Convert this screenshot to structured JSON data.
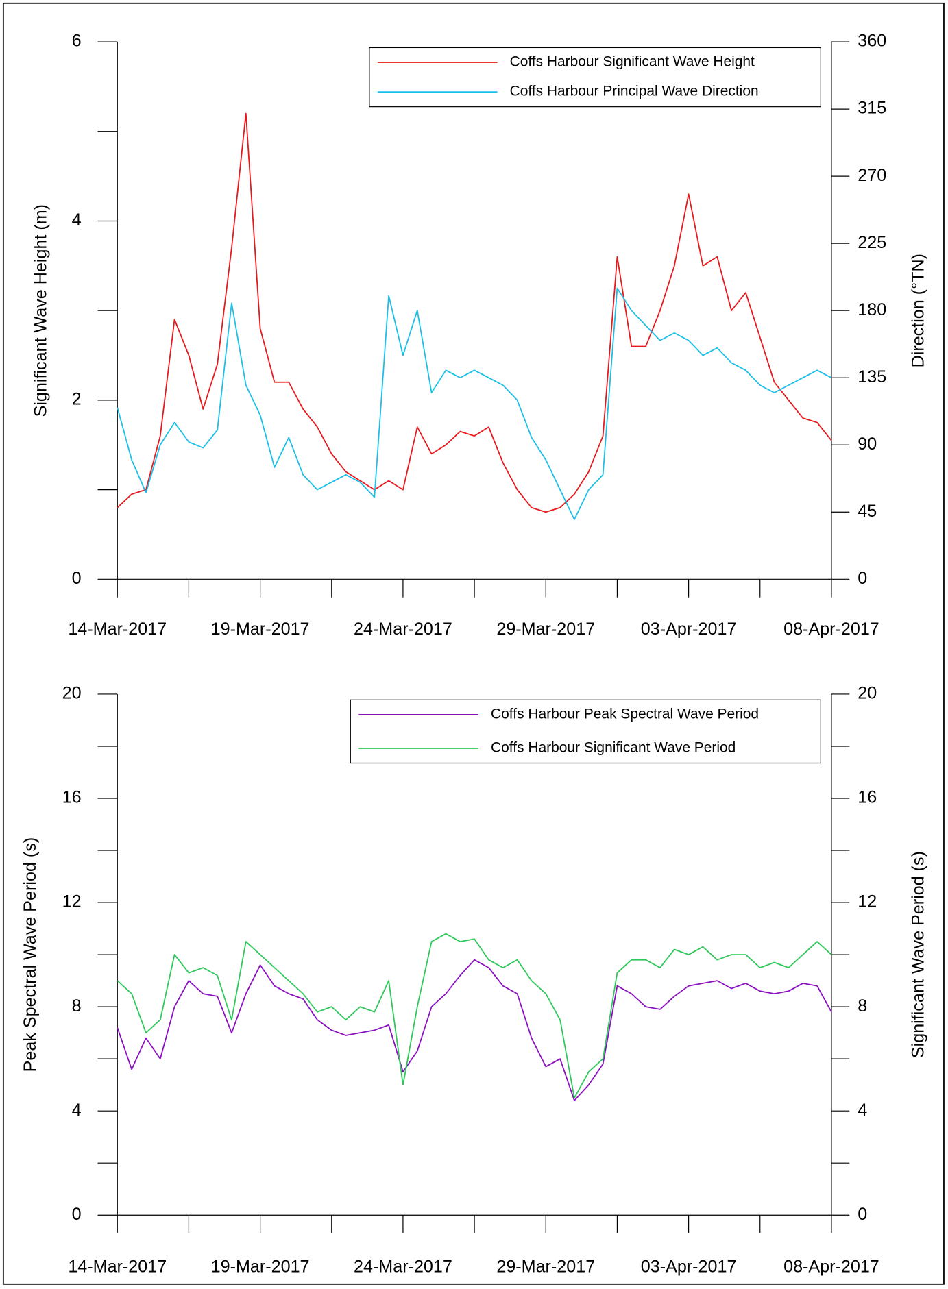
{
  "chart_data": [
    {
      "type": "line",
      "ylabel": "Significant Wave Height (m)",
      "y2label": "Direction (°TN)",
      "x": [
        42808,
        42808.5,
        42809,
        42809.5,
        42810,
        42810.5,
        42811,
        42811.5,
        42812,
        42812.5,
        42813,
        42813.5,
        42814,
        42814.5,
        42815,
        42815.5,
        42816,
        42816.5,
        42817,
        42817.5,
        42818,
        42818.5,
        42819,
        42819.5,
        42820,
        42820.5,
        42821,
        42821.5,
        42822,
        42822.5,
        42823,
        42823.5,
        42824,
        42824.5,
        42825,
        42825.5,
        42826,
        42826.5,
        42827,
        42827.5,
        42828,
        42828.5,
        42829,
        42829.5,
        42830,
        42830.5,
        42831,
        42831.5,
        42832,
        42832.5,
        42833
      ],
      "xlim": [
        42808,
        42833
      ],
      "xticks": [
        {
          "value": 42808,
          "label": "14-Mar-2017"
        },
        {
          "value": 42813,
          "label": "19-Mar-2017"
        },
        {
          "value": 42818,
          "label": "24-Mar-2017"
        },
        {
          "value": 42823,
          "label": "29-Mar-2017"
        },
        {
          "value": 42828,
          "label": "03-Apr-2017"
        },
        {
          "value": 42833,
          "label": "08-Apr-2017"
        }
      ],
      "xminorticks": [
        42810.5,
        42815.5,
        42820.5,
        42825.5,
        42830.5
      ],
      "ylim": [
        0,
        6
      ],
      "yticks": [
        0,
        2,
        4,
        6
      ],
      "yminorticks": [
        1,
        3,
        5
      ],
      "y2lim": [
        0,
        360
      ],
      "y2ticks": [
        0,
        45,
        90,
        135,
        180,
        225,
        270,
        315,
        360
      ],
      "y2minorticks": [],
      "legend": "upper right",
      "series": [
        {
          "name": "Coffs Harbour Significant Wave Height",
          "color": "#e8191c",
          "values": [
            0.8,
            0.95,
            1.0,
            1.6,
            2.9,
            2.5,
            1.9,
            2.4,
            3.7,
            5.2,
            2.8,
            2.2,
            2.2,
            1.9,
            1.7,
            1.4,
            1.2,
            1.1,
            1.0,
            1.1,
            1.0,
            1.7,
            1.4,
            1.5,
            1.65,
            1.6,
            1.7,
            1.3,
            1.0,
            0.8,
            0.75,
            0.8,
            0.95,
            1.2,
            1.6,
            3.6,
            2.6,
            2.6,
            3.0,
            3.5,
            4.3,
            3.5,
            3.6,
            3.0,
            3.2,
            2.7,
            2.2,
            2.0,
            1.8,
            1.75,
            1.55
          ]
        },
        {
          "name": "Coffs Harbour Principal Wave Direction",
          "color": "#1cbfe8",
          "axis": "y2",
          "values": [
            115,
            80,
            58,
            90,
            105,
            92,
            88,
            100,
            185,
            130,
            110,
            75,
            95,
            70,
            60,
            65,
            70,
            65,
            55,
            190,
            150,
            180,
            125,
            140,
            135,
            140,
            135,
            130,
            120,
            95,
            80,
            60,
            40,
            60,
            70,
            195,
            180,
            170,
            160,
            165,
            160,
            150,
            155,
            145,
            140,
            130,
            125,
            130,
            135,
            140,
            135
          ]
        }
      ]
    },
    {
      "type": "line",
      "ylabel": "Peak Spectral Wave Period (s)",
      "y2label": "Significant Wave Period (s)",
      "x": [
        42808,
        42808.5,
        42809,
        42809.5,
        42810,
        42810.5,
        42811,
        42811.5,
        42812,
        42812.5,
        42813,
        42813.5,
        42814,
        42814.5,
        42815,
        42815.5,
        42816,
        42816.5,
        42817,
        42817.5,
        42818,
        42818.5,
        42819,
        42819.5,
        42820,
        42820.5,
        42821,
        42821.5,
        42822,
        42822.5,
        42823,
        42823.5,
        42824,
        42824.5,
        42825,
        42825.5,
        42826,
        42826.5,
        42827,
        42827.5,
        42828,
        42828.5,
        42829,
        42829.5,
        42830,
        42830.5,
        42831,
        42831.5,
        42832,
        42832.5,
        42833
      ],
      "xlim": [
        42808,
        42833
      ],
      "xticks": [
        {
          "value": 42808,
          "label": "14-Mar-2017"
        },
        {
          "value": 42813,
          "label": "19-Mar-2017"
        },
        {
          "value": 42818,
          "label": "24-Mar-2017"
        },
        {
          "value": 42823,
          "label": "29-Mar-2017"
        },
        {
          "value": 42828,
          "label": "03-Apr-2017"
        },
        {
          "value": 42833,
          "label": "08-Apr-2017"
        }
      ],
      "xminorticks": [
        42810.5,
        42815.5,
        42820.5,
        42825.5,
        42830.5
      ],
      "ylim": [
        0,
        20
      ],
      "yticks": [
        0,
        4,
        8,
        12,
        16,
        20
      ],
      "yminorticks": [
        2,
        6,
        10,
        14,
        18
      ],
      "y2lim": [
        0,
        20
      ],
      "y2ticks": [
        0,
        4,
        8,
        12,
        16,
        20
      ],
      "y2minorticks": [
        2,
        6,
        10,
        14,
        18
      ],
      "legend": "upper right",
      "series": [
        {
          "name": "Coffs Harbour Peak Spectral Wave Period",
          "color": "#8b10c0",
          "values": [
            7.2,
            5.6,
            6.8,
            6.0,
            8.0,
            9.0,
            8.5,
            8.4,
            7.0,
            8.5,
            9.6,
            8.8,
            8.5,
            8.3,
            7.5,
            7.1,
            6.9,
            7.0,
            7.1,
            7.3,
            5.5,
            6.3,
            8.0,
            8.5,
            9.2,
            9.8,
            9.5,
            8.8,
            8.5,
            6.8,
            5.7,
            6.0,
            4.4,
            5.0,
            5.8,
            8.8,
            8.5,
            8.0,
            7.9,
            8.4,
            8.8,
            8.9,
            9.0,
            8.7,
            8.9,
            8.6,
            8.5,
            8.6,
            8.9,
            8.8,
            7.8
          ]
        },
        {
          "name": "Coffs Harbour Significant Wave Period",
          "color": "#2ec85a",
          "axis": "y2",
          "values": [
            9.0,
            8.5,
            7.0,
            7.5,
            10.0,
            9.3,
            9.5,
            9.2,
            7.5,
            10.5,
            10.0,
            9.5,
            9.0,
            8.5,
            7.8,
            8.0,
            7.5,
            8.0,
            7.8,
            9.0,
            5.0,
            8.0,
            10.5,
            10.8,
            10.5,
            10.6,
            9.8,
            9.5,
            9.8,
            9.0,
            8.5,
            7.5,
            4.5,
            5.5,
            6.0,
            9.3,
            9.8,
            9.8,
            9.5,
            10.2,
            10.0,
            10.3,
            9.8,
            10.0,
            10.0,
            9.5,
            9.7,
            9.5,
            10.0,
            10.5,
            10.0
          ]
        }
      ]
    }
  ]
}
